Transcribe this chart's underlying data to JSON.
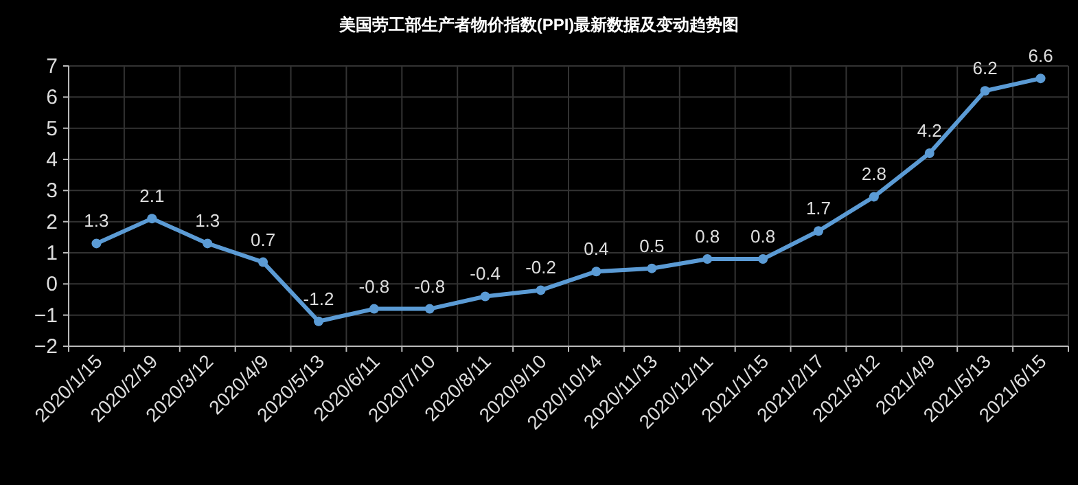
{
  "chart_data": {
    "type": "line",
    "title": "美国劳工部生产者物价指数(PPI)最新数据及变动趋势图",
    "categories": [
      "2020/1/15",
      "2020/2/19",
      "2020/3/12",
      "2020/4/9",
      "2020/5/13",
      "2020/6/11",
      "2020/7/10",
      "2020/8/11",
      "2020/9/10",
      "2020/10/14",
      "2020/11/13",
      "2020/12/11",
      "2021/1/15",
      "2021/2/17",
      "2021/3/12",
      "2021/4/9",
      "2021/5/13",
      "2021/6/15"
    ],
    "values": [
      1.3,
      2.1,
      1.3,
      0.7,
      -1.2,
      -0.8,
      -0.8,
      -0.4,
      -0.2,
      0.4,
      0.5,
      0.8,
      0.8,
      1.7,
      2.8,
      4.2,
      6.2,
      6.6
    ],
    "color": "#5b9bd5",
    "ylim": [
      -2,
      7
    ],
    "yticks": [
      -2,
      -1,
      0,
      1,
      2,
      3,
      4,
      5,
      6,
      7
    ],
    "grid": true,
    "marker": "circle",
    "data_labels": true
  }
}
